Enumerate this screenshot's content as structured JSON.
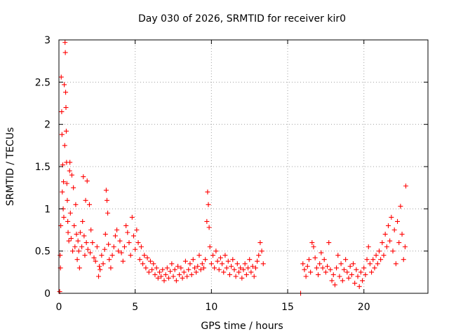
{
  "colors": {
    "points": "#ff0000",
    "axes": "#000000",
    "grid": "#a0a0a0"
  },
  "chart_data": {
    "type": "scatter",
    "title": "Day 030 of 2026, SRMTID for receiver kir0",
    "xlabel": "GPS time / hours",
    "ylabel": "SRMTID / TECUs",
    "xlim": [
      0,
      24.2
    ],
    "ylim": [
      0,
      3
    ],
    "xticks": [
      0,
      5,
      10,
      15,
      20
    ],
    "xtick_labels": [
      "0",
      "5",
      "10",
      "15",
      "20"
    ],
    "yticks": [
      0,
      0.5,
      1,
      1.5,
      2,
      2.5,
      3
    ],
    "ytick_labels": [
      "0",
      "0.5",
      "1",
      "1.5",
      "2",
      "2.5",
      "3"
    ],
    "grid": true,
    "marker": "+",
    "series": [
      {
        "name": "kir0",
        "points": [
          [
            0.05,
            0.02
          ],
          [
            0.08,
            0.45
          ],
          [
            0.1,
            0.3
          ],
          [
            0.12,
            0.8
          ],
          [
            0.15,
            2.56
          ],
          [
            0.18,
            2.15
          ],
          [
            0.2,
            1.88
          ],
          [
            0.22,
            1.2
          ],
          [
            0.25,
            1.52
          ],
          [
            0.28,
            1.0
          ],
          [
            0.3,
            1.32
          ],
          [
            0.32,
            0.9
          ],
          [
            0.35,
            2.47
          ],
          [
            0.38,
            1.75
          ],
          [
            0.4,
            2.97
          ],
          [
            0.42,
            2.85
          ],
          [
            0.44,
            2.38
          ],
          [
            0.46,
            2.2
          ],
          [
            0.48,
            1.92
          ],
          [
            0.5,
            1.55
          ],
          [
            0.52,
            1.3
          ],
          [
            0.55,
            1.1
          ],
          [
            0.58,
            0.85
          ],
          [
            0.6,
            0.72
          ],
          [
            0.65,
            0.62
          ],
          [
            0.7,
            1.45
          ],
          [
            0.72,
            1.55
          ],
          [
            0.75,
            0.95
          ],
          [
            0.8,
            0.65
          ],
          [
            0.85,
            1.4
          ],
          [
            0.9,
            0.5
          ],
          [
            0.95,
            1.25
          ],
          [
            1.0,
            0.8
          ],
          [
            1.05,
            0.55
          ],
          [
            1.1,
            1.05
          ],
          [
            1.15,
            0.7
          ],
          [
            1.2,
            0.4
          ],
          [
            1.25,
            0.62
          ],
          [
            1.3,
            0.5
          ],
          [
            1.35,
            0.3
          ],
          [
            1.4,
            0.72
          ],
          [
            1.5,
            0.55
          ],
          [
            1.55,
            0.85
          ],
          [
            1.6,
            1.38
          ],
          [
            1.65,
            0.68
          ],
          [
            1.7,
            0.45
          ],
          [
            1.75,
            1.1
          ],
          [
            1.8,
            0.6
          ],
          [
            1.85,
            1.33
          ],
          [
            1.9,
            0.52
          ],
          [
            2.0,
            1.05
          ],
          [
            2.05,
            0.48
          ],
          [
            2.1,
            0.75
          ],
          [
            2.2,
            0.6
          ],
          [
            2.3,
            0.42
          ],
          [
            2.4,
            0.38
          ],
          [
            2.5,
            0.55
          ],
          [
            2.6,
            0.2
          ],
          [
            2.65,
            0.32
          ],
          [
            2.7,
            0.28
          ],
          [
            2.8,
            0.45
          ],
          [
            2.9,
            0.35
          ],
          [
            3.0,
            0.52
          ],
          [
            3.05,
            0.7
          ],
          [
            3.1,
            1.22
          ],
          [
            3.15,
            1.1
          ],
          [
            3.2,
            0.95
          ],
          [
            3.25,
            0.58
          ],
          [
            3.3,
            0.4
          ],
          [
            3.4,
            0.3
          ],
          [
            3.5,
            0.45
          ],
          [
            3.6,
            0.55
          ],
          [
            3.7,
            0.68
          ],
          [
            3.8,
            0.75
          ],
          [
            3.9,
            0.5
          ],
          [
            4.0,
            0.62
          ],
          [
            4.1,
            0.48
          ],
          [
            4.2,
            0.38
          ],
          [
            4.3,
            0.55
          ],
          [
            4.4,
            0.8
          ],
          [
            4.5,
            0.72
          ],
          [
            4.6,
            0.6
          ],
          [
            4.7,
            0.45
          ],
          [
            4.8,
            0.9
          ],
          [
            4.9,
            0.68
          ],
          [
            5.0,
            0.52
          ],
          [
            5.1,
            0.75
          ],
          [
            5.2,
            0.6
          ],
          [
            5.3,
            0.4
          ],
          [
            5.4,
            0.55
          ],
          [
            5.5,
            0.35
          ],
          [
            5.6,
            0.45
          ],
          [
            5.7,
            0.3
          ],
          [
            5.8,
            0.42
          ],
          [
            5.9,
            0.25
          ],
          [
            6.0,
            0.38
          ],
          [
            6.1,
            0.28
          ],
          [
            6.2,
            0.35
          ],
          [
            6.3,
            0.22
          ],
          [
            6.4,
            0.3
          ],
          [
            6.5,
            0.18
          ],
          [
            6.6,
            0.25
          ],
          [
            6.7,
            0.2
          ],
          [
            6.8,
            0.28
          ],
          [
            6.9,
            0.15
          ],
          [
            7.0,
            0.22
          ],
          [
            7.1,
            0.3
          ],
          [
            7.2,
            0.18
          ],
          [
            7.3,
            0.26
          ],
          [
            7.4,
            0.35
          ],
          [
            7.5,
            0.2
          ],
          [
            7.6,
            0.28
          ],
          [
            7.7,
            0.15
          ],
          [
            7.8,
            0.32
          ],
          [
            7.9,
            0.22
          ],
          [
            8.0,
            0.3
          ],
          [
            8.1,
            0.18
          ],
          [
            8.2,
            0.25
          ],
          [
            8.3,
            0.38
          ],
          [
            8.4,
            0.2
          ],
          [
            8.5,
            0.28
          ],
          [
            8.6,
            0.35
          ],
          [
            8.7,
            0.22
          ],
          [
            8.8,
            0.4
          ],
          [
            8.9,
            0.3
          ],
          [
            9.0,
            0.25
          ],
          [
            9.1,
            0.32
          ],
          [
            9.2,
            0.45
          ],
          [
            9.3,
            0.28
          ],
          [
            9.4,
            0.35
          ],
          [
            9.5,
            0.3
          ],
          [
            9.6,
            0.4
          ],
          [
            9.7,
            0.85
          ],
          [
            9.75,
            1.2
          ],
          [
            9.8,
            1.05
          ],
          [
            9.85,
            0.78
          ],
          [
            9.9,
            0.55
          ],
          [
            10.0,
            0.35
          ],
          [
            10.1,
            0.45
          ],
          [
            10.2,
            0.3
          ],
          [
            10.3,
            0.5
          ],
          [
            10.4,
            0.38
          ],
          [
            10.5,
            0.28
          ],
          [
            10.6,
            0.42
          ],
          [
            10.7,
            0.35
          ],
          [
            10.8,
            0.25
          ],
          [
            10.9,
            0.45
          ],
          [
            11.0,
            0.3
          ],
          [
            11.1,
            0.38
          ],
          [
            11.2,
            0.22
          ],
          [
            11.3,
            0.32
          ],
          [
            11.4,
            0.4
          ],
          [
            11.5,
            0.28
          ],
          [
            11.6,
            0.2
          ],
          [
            11.7,
            0.35
          ],
          [
            11.8,
            0.25
          ],
          [
            11.9,
            0.3
          ],
          [
            12.0,
            0.18
          ],
          [
            12.1,
            0.28
          ],
          [
            12.2,
            0.35
          ],
          [
            12.3,
            0.22
          ],
          [
            12.4,
            0.3
          ],
          [
            12.5,
            0.4
          ],
          [
            12.6,
            0.25
          ],
          [
            12.7,
            0.32
          ],
          [
            12.8,
            0.2
          ],
          [
            12.9,
            0.3
          ],
          [
            13.0,
            0.38
          ],
          [
            13.1,
            0.45
          ],
          [
            13.2,
            0.6
          ],
          [
            13.3,
            0.5
          ],
          [
            13.4,
            0.35
          ],
          [
            15.85,
            0.0
          ],
          [
            16.0,
            0.35
          ],
          [
            16.1,
            0.28
          ],
          [
            16.2,
            0.2
          ],
          [
            16.3,
            0.32
          ],
          [
            16.4,
            0.4
          ],
          [
            16.5,
            0.25
          ],
          [
            16.6,
            0.6
          ],
          [
            16.7,
            0.55
          ],
          [
            16.8,
            0.42
          ],
          [
            16.9,
            0.3
          ],
          [
            17.0,
            0.22
          ],
          [
            17.1,
            0.35
          ],
          [
            17.2,
            0.48
          ],
          [
            17.3,
            0.3
          ],
          [
            17.4,
            0.4
          ],
          [
            17.5,
            0.25
          ],
          [
            17.6,
            0.32
          ],
          [
            17.7,
            0.6
          ],
          [
            17.8,
            0.28
          ],
          [
            17.9,
            0.15
          ],
          [
            18.0,
            0.22
          ],
          [
            18.1,
            0.1
          ],
          [
            18.2,
            0.3
          ],
          [
            18.3,
            0.45
          ],
          [
            18.4,
            0.2
          ],
          [
            18.5,
            0.35
          ],
          [
            18.6,
            0.15
          ],
          [
            18.7,
            0.28
          ],
          [
            18.8,
            0.4
          ],
          [
            18.9,
            0.25
          ],
          [
            19.0,
            0.18
          ],
          [
            19.1,
            0.32
          ],
          [
            19.2,
            0.22
          ],
          [
            19.3,
            0.35
          ],
          [
            19.4,
            0.12
          ],
          [
            19.5,
            0.28
          ],
          [
            19.6,
            0.2
          ],
          [
            19.7,
            0.08
          ],
          [
            19.8,
            0.25
          ],
          [
            19.9,
            0.15
          ],
          [
            20.0,
            0.3
          ],
          [
            20.1,
            0.22
          ],
          [
            20.2,
            0.4
          ],
          [
            20.3,
            0.55
          ],
          [
            20.4,
            0.35
          ],
          [
            20.5,
            0.25
          ],
          [
            20.6,
            0.4
          ],
          [
            20.7,
            0.3
          ],
          [
            20.8,
            0.45
          ],
          [
            20.9,
            0.35
          ],
          [
            21.0,
            0.5
          ],
          [
            21.1,
            0.4
          ],
          [
            21.2,
            0.6
          ],
          [
            21.3,
            0.45
          ],
          [
            21.4,
            0.7
          ],
          [
            21.5,
            0.55
          ],
          [
            21.6,
            0.8
          ],
          [
            21.7,
            0.62
          ],
          [
            21.8,
            0.9
          ],
          [
            21.9,
            0.5
          ],
          [
            22.0,
            0.75
          ],
          [
            22.1,
            0.35
          ],
          [
            22.2,
            0.85
          ],
          [
            22.3,
            0.6
          ],
          [
            22.4,
            1.03
          ],
          [
            22.5,
            0.7
          ],
          [
            22.6,
            0.4
          ],
          [
            22.7,
            0.55
          ],
          [
            22.75,
            1.27
          ]
        ]
      }
    ]
  }
}
